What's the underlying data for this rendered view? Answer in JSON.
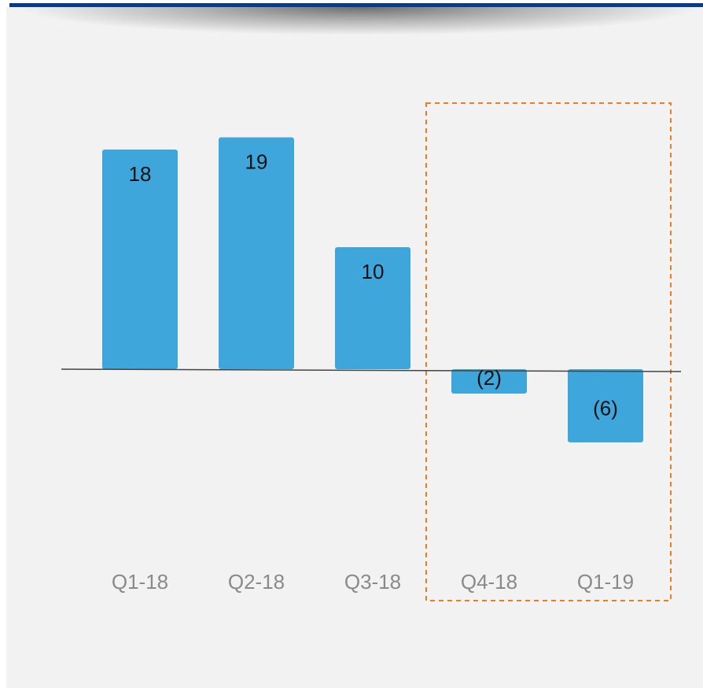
{
  "chart_data": {
    "type": "bar",
    "categories": [
      "Q1-18",
      "Q2-18",
      "Q3-18",
      "Q4-18",
      "Q1-19"
    ],
    "values": [
      18,
      19,
      10,
      -2,
      -6
    ],
    "data_labels": [
      "18",
      "19",
      "10",
      "(2)",
      "(6)"
    ],
    "title": "",
    "xlabel": "",
    "ylabel": "",
    "highlight": {
      "categories": [
        "Q4-18",
        "Q1-19"
      ],
      "style": "dashed-box"
    },
    "colors": {
      "bar": "#3fa6dc",
      "highlight_box": "#f07d1a",
      "baseline": "#444444"
    },
    "grid": false,
    "legend": false
  }
}
